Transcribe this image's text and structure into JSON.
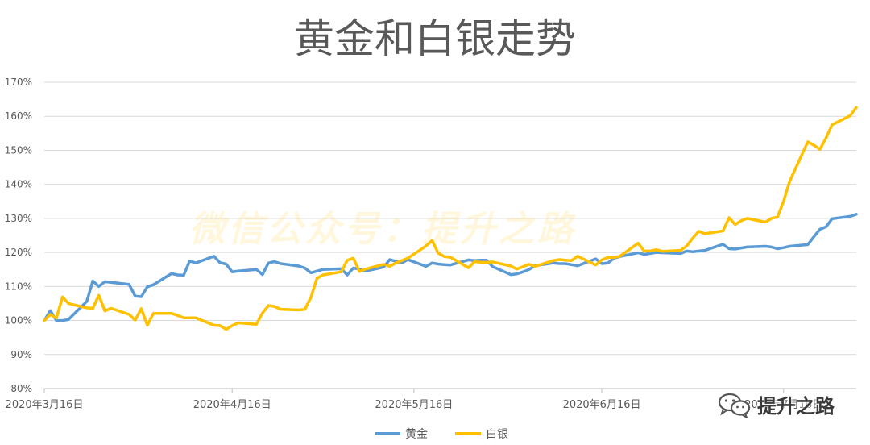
{
  "chart_data": {
    "type": "line",
    "title": "黄金和白银走势",
    "xlabel": "",
    "ylabel": "",
    "ylim": [
      80,
      170
    ],
    "yticks": [
      "80%",
      "90%",
      "100%",
      "110%",
      "120%",
      "130%",
      "140%",
      "150%",
      "160%",
      "170%"
    ],
    "xtick_labels": [
      "2020年3月16日",
      "2020年4月16日",
      "2020年5月16日",
      "2020年6月16日",
      "2020年7月16日"
    ],
    "grid": true,
    "legend_position": "bottom",
    "x": [
      "2020-03-16",
      "2020-03-17",
      "2020-03-18",
      "2020-03-19",
      "2020-03-20",
      "2020-03-23",
      "2020-03-24",
      "2020-03-25",
      "2020-03-26",
      "2020-03-27",
      "2020-03-30",
      "2020-03-31",
      "2020-04-01",
      "2020-04-02",
      "2020-04-03",
      "2020-04-06",
      "2020-04-07",
      "2020-04-08",
      "2020-04-09",
      "2020-04-10",
      "2020-04-13",
      "2020-04-14",
      "2020-04-15",
      "2020-04-16",
      "2020-04-17",
      "2020-04-20",
      "2020-04-21",
      "2020-04-22",
      "2020-04-23",
      "2020-04-24",
      "2020-04-27",
      "2020-04-28",
      "2020-04-29",
      "2020-04-30",
      "2020-05-01",
      "2020-05-04",
      "2020-05-05",
      "2020-05-06",
      "2020-05-07",
      "2020-05-08",
      "2020-05-11",
      "2020-05-12",
      "2020-05-13",
      "2020-05-14",
      "2020-05-15",
      "2020-05-18",
      "2020-05-19",
      "2020-05-20",
      "2020-05-21",
      "2020-05-22",
      "2020-05-25",
      "2020-05-26",
      "2020-05-27",
      "2020-05-28",
      "2020-05-29",
      "2020-06-01",
      "2020-06-02",
      "2020-06-03",
      "2020-06-04",
      "2020-06-05",
      "2020-06-08",
      "2020-06-09",
      "2020-06-10",
      "2020-06-11",
      "2020-06-12",
      "2020-06-15",
      "2020-06-16",
      "2020-06-17",
      "2020-06-18",
      "2020-06-19",
      "2020-06-22",
      "2020-06-23",
      "2020-06-24",
      "2020-06-25",
      "2020-06-26",
      "2020-06-29",
      "2020-06-30",
      "2020-07-01",
      "2020-07-02",
      "2020-07-03",
      "2020-07-06",
      "2020-07-07",
      "2020-07-08",
      "2020-07-09",
      "2020-07-10",
      "2020-07-13",
      "2020-07-14",
      "2020-07-15",
      "2020-07-16",
      "2020-07-17",
      "2020-07-20",
      "2020-07-21",
      "2020-07-22",
      "2020-07-23",
      "2020-07-24",
      "2020-07-27",
      "2020-07-28"
    ],
    "series": [
      {
        "name": "黄金",
        "color": "#5B9BD5",
        "values": [
          100,
          102.9,
          100,
          100,
          100.3,
          105.6,
          111.6,
          110,
          111.4,
          111.2,
          110.6,
          107.2,
          107,
          109.9,
          110.5,
          113.8,
          113.4,
          113.3,
          117.5,
          116.9,
          118.9,
          117,
          116.6,
          114.3,
          114.5,
          115,
          113.5,
          116.9,
          117.3,
          116.7,
          116,
          115.4,
          114,
          114.5,
          115,
          115.2,
          113.4,
          115.4,
          115.1,
          114.5,
          115.7,
          117.9,
          117.4,
          116.9,
          117.9,
          115.9,
          116.9,
          116.6,
          116.4,
          116.3,
          117.8,
          117.6,
          117.7,
          117.7,
          115.8,
          113.5,
          113.7,
          114.3,
          115,
          116.1,
          116.9,
          116.7,
          116.7,
          116.4,
          116.1,
          118.1,
          116.7,
          116.9,
          118.3,
          118.8,
          119.9,
          119.4,
          119.7,
          120,
          119.9,
          119.7,
          120.4,
          120.2,
          120.4,
          120.6,
          122.4,
          121.1,
          121,
          121.3,
          121.6,
          121.8,
          121.6,
          121.1,
          121.4,
          121.8,
          122.3,
          124.6,
          126.8,
          127.5,
          129.9,
          130.6,
          131.2
        ]
      },
      {
        "name": "白银",
        "color": "#FFC000",
        "values": [
          100,
          101.8,
          100.7,
          106.9,
          105,
          103.7,
          103.6,
          107.4,
          102.8,
          103.6,
          101.8,
          100.1,
          103.5,
          98.6,
          102.1,
          102.1,
          101.5,
          100.8,
          100.8,
          100.8,
          98.6,
          98.5,
          97.4,
          98.5,
          99.3,
          98.9,
          102.2,
          104.4,
          104.1,
          103.3,
          103.1,
          103.3,
          106.8,
          112.4,
          113.4,
          114.3,
          117.7,
          118.3,
          114.4,
          115.1,
          116.5,
          115.9,
          116.9,
          117.6,
          118.3,
          121.9,
          123.5,
          119.8,
          118.8,
          118.6,
          115.5,
          117.3,
          117.1,
          117.1,
          117.2,
          116,
          115.1,
          115.8,
          116.5,
          115.9,
          117.6,
          117.9,
          117.7,
          117.6,
          118.9,
          116.3,
          117.8,
          118.5,
          118.5,
          118.9,
          122.7,
          120.4,
          120.4,
          120.8,
          120.3,
          120.6,
          121.9,
          124.2,
          126.2,
          125.5,
          126.3,
          130.2,
          128.2,
          129.3,
          130,
          128.9,
          130,
          130.4,
          135,
          140.9,
          152.5,
          151.5,
          150.3,
          153.6,
          157.5,
          160.2,
          162.6
        ]
      }
    ]
  },
  "watermarks": {
    "center": "微信公众号：提升之路",
    "logo": "提升之路"
  }
}
